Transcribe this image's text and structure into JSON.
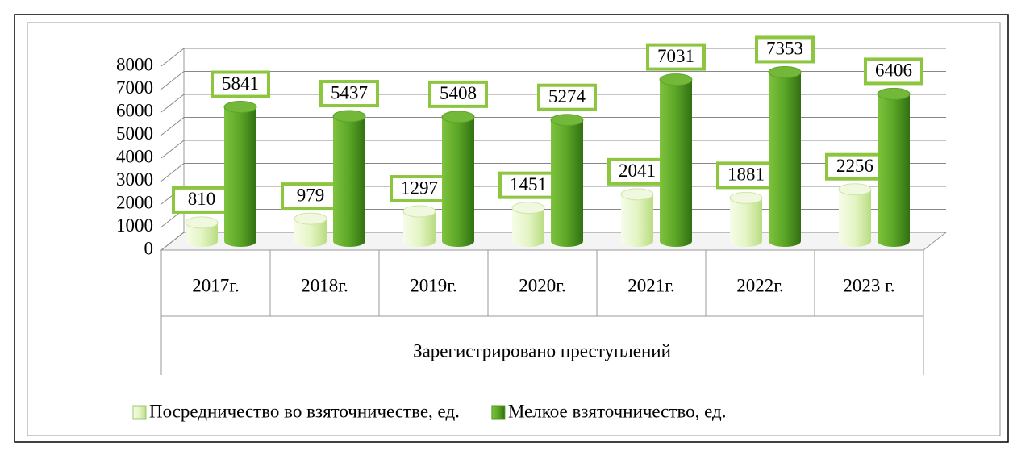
{
  "chart_data": {
    "type": "bar3d",
    "x_label": "Зарегистрировано преступлений",
    "categories": [
      "2017г.",
      "2018г.",
      "2019г.",
      "2020г.",
      "2021г.",
      "2022г.",
      "2023 г."
    ],
    "series": [
      {
        "name": "Посредничество во взяточничестве, ед.",
        "color": "#d4eea6",
        "values": [
          810,
          979,
          1297,
          1451,
          2041,
          1881,
          2256
        ]
      },
      {
        "name": "Мелкое взяточничество, ед.",
        "color": "#4f9a1f",
        "values": [
          5841,
          5437,
          5408,
          5274,
          7031,
          7353,
          6406
        ]
      }
    ],
    "ylim": [
      0,
      8000
    ],
    "yticks": [
      0,
      1000,
      2000,
      3000,
      4000,
      5000,
      6000,
      7000,
      8000
    ],
    "grid": true,
    "legend": "bottom"
  }
}
